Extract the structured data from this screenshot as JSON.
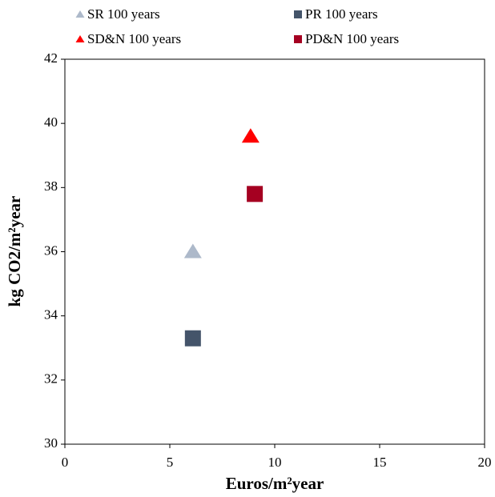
{
  "chart_data": {
    "type": "scatter",
    "x_label": "Euros/m²year",
    "y_label": "kg CO2/m²year",
    "xlim": [
      0,
      20
    ],
    "xticks": [
      0,
      5,
      10,
      15,
      20
    ],
    "ylim": [
      30,
      42
    ],
    "yticks": [
      30,
      32,
      34,
      36,
      38,
      40,
      42
    ],
    "grid": false,
    "legend": "top",
    "series": [
      {
        "name": "SR 100 years",
        "color": "#adb9ca",
        "marker": "triangle",
        "x": [
          6.1
        ],
        "values": [
          36.0
        ]
      },
      {
        "name": "PR 100 years",
        "color": "#44546a",
        "marker": "square",
        "x": [
          6.1
        ],
        "values": [
          33.3
        ]
      },
      {
        "name": "SD&N 100 years",
        "color": "#ff0000",
        "marker": "triangle",
        "x": [
          8.85
        ],
        "values": [
          39.6
        ]
      },
      {
        "name": "PD&N 100 years",
        "color": "#a50021",
        "marker": "square",
        "x": [
          9.05
        ],
        "values": [
          37.8
        ]
      }
    ]
  }
}
